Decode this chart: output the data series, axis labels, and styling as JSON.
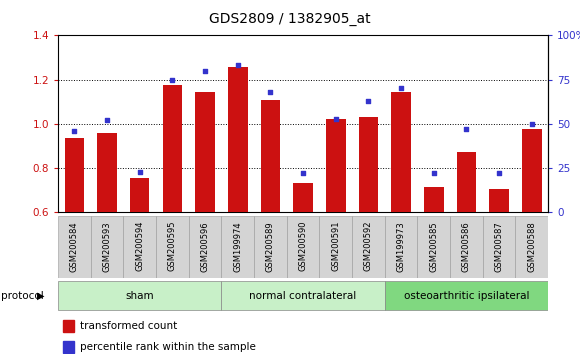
{
  "title": "GDS2809 / 1382905_at",
  "samples": [
    "GSM200584",
    "GSM200593",
    "GSM200594",
    "GSM200595",
    "GSM200596",
    "GSM199974",
    "GSM200589",
    "GSM200590",
    "GSM200591",
    "GSM200592",
    "GSM199973",
    "GSM200585",
    "GSM200586",
    "GSM200587",
    "GSM200588"
  ],
  "red_values": [
    0.935,
    0.958,
    0.755,
    1.175,
    1.145,
    1.255,
    1.11,
    0.735,
    1.02,
    1.03,
    1.145,
    0.715,
    0.875,
    0.705,
    0.975
  ],
  "blue_values_pct": [
    46,
    52,
    23,
    75,
    80,
    83,
    68,
    22,
    53,
    63,
    70,
    22,
    47,
    22,
    50
  ],
  "group_labels": [
    "sham",
    "normal contralateral",
    "osteoarthritic ipsilateral"
  ],
  "group_starts": [
    0,
    5,
    10
  ],
  "group_ends": [
    5,
    10,
    15
  ],
  "group_colors": [
    "#c8f0c8",
    "#c8f0c8",
    "#80d880"
  ],
  "ylim_left": [
    0.6,
    1.4
  ],
  "ylim_right": [
    0,
    100
  ],
  "yticks_left": [
    0.6,
    0.8,
    1.0,
    1.2,
    1.4
  ],
  "ytick_labels_left": [
    "0.6",
    "0.8",
    "1.0",
    "1.2",
    "1.4"
  ],
  "yticks_right": [
    0,
    25,
    50,
    75,
    100
  ],
  "ytick_labels_right": [
    "0",
    "25",
    "50",
    "75",
    "100%"
  ],
  "bar_color": "#cc1111",
  "dot_color": "#3333cc",
  "bar_width": 0.6,
  "legend_red": "transformed count",
  "legend_blue": "percentile rank within the sample",
  "protocol_label": "protocol"
}
